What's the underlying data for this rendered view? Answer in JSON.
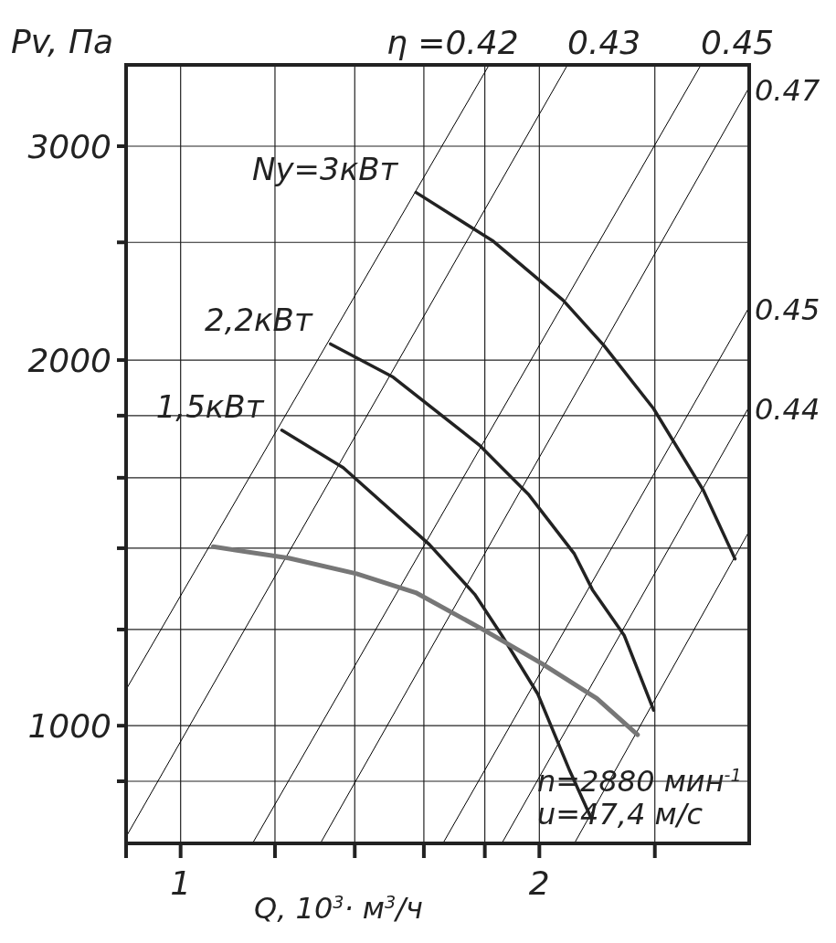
{
  "chart_data": {
    "type": "line",
    "xlabel": "Q, 10$^{3}$· м$^{3}$/ч",
    "ylabel": "Pv, Па",
    "log": "xy",
    "grid": true,
    "xlim": [
      0.9,
      3
    ],
    "xticks": [
      {
        "value": 0.9,
        "label": null
      },
      1,
      {
        "value": 1.2,
        "label": null
      },
      {
        "value": 1.4,
        "label": null
      },
      {
        "value": 1.6,
        "label": null
      },
      {
        "value": 1.8,
        "label": null
      },
      2,
      {
        "value": 2.5,
        "label": null
      }
    ],
    "ylim": [
      800,
      3500
    ],
    "yticks": [
      {
        "value": 900,
        "label": null
      },
      1000,
      {
        "value": 1200,
        "label": null
      },
      {
        "value": 1400,
        "label": null
      },
      {
        "value": 1600,
        "label": null
      },
      {
        "value": 1800,
        "label": null
      },
      2000,
      {
        "value": 2500,
        "label": null
      },
      3000
    ],
    "series": [
      {
        "name": "η =0.42",
        "color": "#000000",
        "x": [
          0.9,
          1.815
        ],
        "values": [
          1071,
          3500
        ]
      },
      {
        "name": "0.43",
        "color": "#000000",
        "x": [
          0.9,
          2.112
        ],
        "values": [
          810,
          3500
        ]
      },
      {
        "name": "0.45",
        "color": "#000000",
        "x": [
          1.149,
          2.733
        ],
        "values": [
          800,
          3500
        ]
      },
      {
        "name": "0.47",
        "color": "#000000",
        "x": [
          1.31,
          3
        ],
        "values": [
          800,
          3354
        ]
      },
      {
        "name": "0.45",
        "color": "#000000",
        "x": [
          1.66,
          3
        ],
        "values": [
          800,
          2211
        ]
      },
      {
        "name": "0.44",
        "color": "#000000",
        "x": [
          1.86,
          3
        ],
        "values": [
          800,
          1831
        ]
      },
      {
        "color": "#000000",
        "x": [
          2.14,
          3
        ],
        "values": [
          800,
          1446
        ]
      },
      {
        "name": "Ny=3кВт",
        "color": "#222222",
        "x": [
          1.576,
          1.83,
          2.094,
          2.265,
          2.494,
          2.746,
          2.919
        ],
        "values": [
          2748,
          2505,
          2240,
          2057,
          1824,
          1562,
          1372
        ]
      },
      {
        "name": "2,2кВт",
        "color": "#222222",
        "x": [
          1.336,
          1.508,
          1.78,
          1.96,
          2.14,
          2.216,
          2.356,
          2.494
        ],
        "values": [
          2062,
          1936,
          1703,
          1549,
          1385,
          1294,
          1187,
          1030
        ]
      },
      {
        "name": "1,5кВт",
        "color": "#222222",
        "x": [
          1.216,
          1.369,
          1.617,
          1.765,
          1.86,
          1.994,
          2.121,
          2.206
        ],
        "values": [
          1751,
          1631,
          1410,
          1283,
          1187,
          1062,
          918,
          843
        ]
      },
      {
        "color": "#777777",
        "x": [
          1.065,
          1.232,
          1.405,
          1.575,
          1.796,
          2.012,
          2.235,
          2.418
        ],
        "values": [
          1404,
          1374,
          1334,
          1287,
          1199,
          1124,
          1053,
          983
        ]
      }
    ],
    "annotations": [
      "n=2880 мин$^{-1}$",
      "u=47,4 м/с"
    ]
  }
}
